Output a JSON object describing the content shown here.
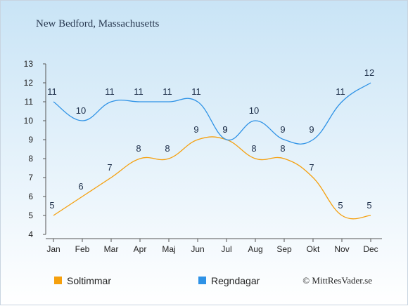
{
  "chart_data": {
    "type": "line",
    "title": "New Bedford, Massachusetts",
    "categories": [
      "Jan",
      "Feb",
      "Mar",
      "Apr",
      "Maj",
      "Jun",
      "Jul",
      "Aug",
      "Sep",
      "Okt",
      "Nov",
      "Dec"
    ],
    "series": [
      {
        "name": "Soltimmar",
        "color": "#f5a00e",
        "values": [
          5,
          6,
          7,
          8,
          8,
          9,
          9,
          8,
          8,
          7,
          5,
          5
        ]
      },
      {
        "name": "Regndagar",
        "color": "#2e92e6",
        "values": [
          11,
          10,
          11,
          11,
          11,
          11,
          9,
          10,
          9,
          9,
          11,
          12
        ]
      }
    ],
    "ylim": [
      4,
      13
    ],
    "yticks": [
      4,
      5,
      6,
      7,
      8,
      9,
      10,
      11,
      12,
      13
    ],
    "grid": false,
    "legend": "bottom-left"
  },
  "credit": "© MittResVader.se"
}
